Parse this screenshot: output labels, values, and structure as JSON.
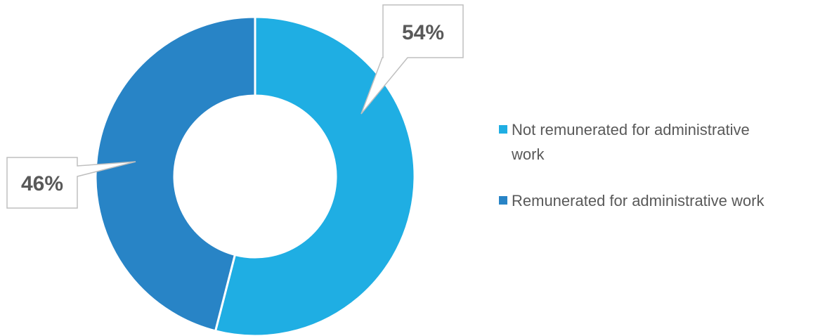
{
  "chart_data": {
    "type": "pie",
    "variant": "donut",
    "series": [
      {
        "name": "Not remunerated for administrative work",
        "value": 54,
        "color": "#1faee3",
        "label": "54%"
      },
      {
        "name": "Remunerated for administrative work",
        "value": 46,
        "color": "#2884c6",
        "label": "46%"
      }
    ],
    "legend_placement": "right",
    "legend": [
      {
        "lines": [
          "Not remunerated for administrative",
          "work"
        ],
        "color": "#1faee3"
      },
      {
        "lines": [
          "Remunerated for administrative work"
        ],
        "color": "#2884c6"
      }
    ]
  }
}
